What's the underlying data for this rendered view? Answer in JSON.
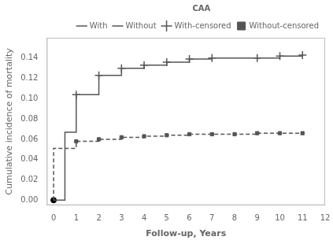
{
  "chart_data": {
    "type": "line",
    "xlabel": "Follow-up, Years",
    "ylabel": "Cumulative incidence of mortality",
    "legend_title": "CAA",
    "legend": "upper right",
    "grid": false,
    "xlim": [
      -0.3,
      12
    ],
    "ylim": [
      -0.005,
      0.16
    ],
    "xticks": [
      0,
      1,
      2,
      3,
      4,
      5,
      6,
      7,
      8,
      9,
      10,
      11,
      12
    ],
    "yticks": [
      {
        "value": 0.0,
        "label": "0.00"
      },
      {
        "value": 0.02,
        "label": "0.02"
      },
      {
        "value": 0.04,
        "label": "0.04"
      },
      {
        "value": 0.06,
        "label": "0.06"
      },
      {
        "value": 0.08,
        "label": "0.08"
      },
      {
        "value": 0.1,
        "label": "0.10"
      },
      {
        "value": 0.12,
        "label": "0.12"
      },
      {
        "value": 0.14,
        "label": "0.14"
      }
    ],
    "series": [
      {
        "name": "With",
        "type": "line",
        "line_style": "solid",
        "color": "#555555",
        "x": [
          0,
          0,
          0.5,
          0.5,
          1,
          1,
          2,
          2,
          3,
          3,
          4,
          4,
          5,
          5,
          6,
          6,
          7,
          7,
          9,
          9,
          10,
          10,
          11
        ],
        "values": [
          0.0,
          0.0,
          0.0,
          0.067,
          0.067,
          0.104,
          0.104,
          0.123,
          0.123,
          0.13,
          0.13,
          0.133,
          0.133,
          0.136,
          0.136,
          0.139,
          0.139,
          0.14,
          0.14,
          0.14,
          0.14,
          0.142,
          0.143
        ]
      },
      {
        "name": "Without",
        "type": "line",
        "line_style": "dashed",
        "color": "#555555",
        "x": [
          0,
          0,
          0.5,
          0.5,
          1,
          1,
          2,
          2,
          3,
          3,
          4,
          4,
          5,
          5,
          6,
          6,
          7,
          7,
          8,
          8,
          9,
          9,
          10,
          10,
          11
        ],
        "values": [
          0.0,
          0.051,
          0.051,
          0.051,
          0.051,
          0.058,
          0.058,
          0.06,
          0.06,
          0.062,
          0.062,
          0.063,
          0.063,
          0.064,
          0.064,
          0.065,
          0.065,
          0.065,
          0.065,
          0.065,
          0.065,
          0.066,
          0.066,
          0.066,
          0.066
        ]
      },
      {
        "name": "With-censored",
        "type": "scatter",
        "marker": "plus",
        "color": "#555555",
        "x": [
          1,
          2,
          3,
          4,
          5,
          6,
          7,
          9,
          10,
          11
        ],
        "values": [
          0.104,
          0.123,
          0.13,
          0.133,
          0.136,
          0.139,
          0.14,
          0.14,
          0.142,
          0.143
        ]
      },
      {
        "name": "Without-censored",
        "type": "scatter",
        "marker": "square",
        "color": "#555555",
        "x": [
          1,
          2,
          3,
          4,
          5,
          6,
          7,
          8,
          9,
          10,
          11
        ],
        "values": [
          0.058,
          0.06,
          0.062,
          0.063,
          0.064,
          0.065,
          0.065,
          0.065,
          0.066,
          0.066,
          0.066
        ]
      },
      {
        "type": "scatter",
        "marker": "circle",
        "color": "#000000",
        "x": [
          0
        ],
        "values": [
          0.0
        ]
      }
    ]
  }
}
